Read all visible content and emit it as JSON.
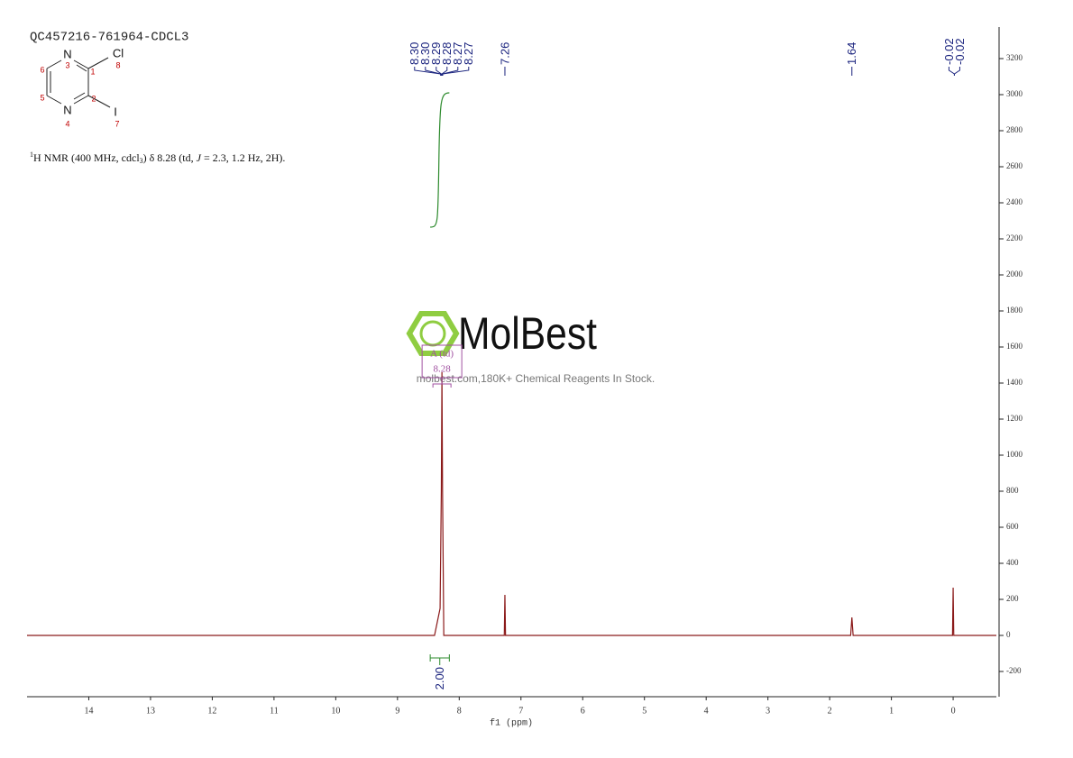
{
  "title": "QC457216-761964-CDCL3",
  "structure": {
    "atoms": [
      "N",
      "Cl",
      "N",
      "I"
    ],
    "numbers": [
      "3",
      "1",
      "8",
      "6",
      "5",
      "2",
      "4",
      "7"
    ]
  },
  "description": [
    "1",
    "H NMR (400 MHz, cdcl",
    "3",
    ") δ 8.28 (td, ",
    "J",
    " = 2.3, 1.2 Hz, 2H)."
  ],
  "watermark": {
    "brand": "MolBest",
    "tagline": "molbest.com,180K+ Chemical Reagents In Stock."
  },
  "chart_data": {
    "type": "line",
    "x_label": "f1 (ppm)",
    "xlim": [
      15,
      -0.7
    ],
    "xticks": [
      0,
      1,
      2,
      3,
      4,
      5,
      6,
      7,
      8,
      9,
      10,
      11,
      12,
      13,
      14
    ],
    "ylim": [
      -340,
      3375
    ],
    "yticks": [
      -200,
      0,
      200,
      400,
      600,
      800,
      1000,
      1200,
      1400,
      1600,
      1800,
      2000,
      2200,
      2400,
      2600,
      2800,
      3000,
      3200
    ],
    "series": [
      {
        "color": "#8b1a1a",
        "x": [
          15,
          8.4,
          8.31,
          8.29,
          8.28,
          8.27,
          8.25,
          8.1,
          7.27,
          7.26,
          7.25,
          1.66,
          1.64,
          1.62,
          0.01,
          0,
          -0.01,
          -0.7
        ],
        "values": [
          0,
          0,
          150,
          800,
          1460,
          800,
          0,
          0,
          0,
          225,
          0,
          0,
          100,
          0,
          0,
          265,
          0,
          0
        ]
      }
    ],
    "peak_labels": [
      {
        "value": 8.3,
        "label": "8.30"
      },
      {
        "value": 8.3,
        "label": "8.30"
      },
      8.29,
      8.28,
      8.27,
      8.27,
      7.26,
      1.64,
      -0.02,
      -0.02
    ],
    "integrals": [
      {
        "range": [
          8.47,
          8.16
        ],
        "value": {
          "value": 2,
          "label": "2.00"
        },
        "color": "#2e8b2e"
      }
    ],
    "multiplets": [
      {
        "name": "A (td)",
        "shift": 8.28
      }
    ]
  }
}
